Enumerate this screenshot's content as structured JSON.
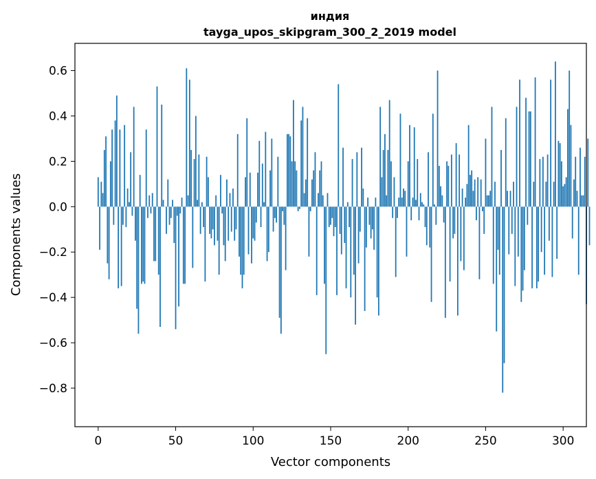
{
  "chart_data": {
    "type": "bar",
    "title": "индия",
    "subtitle": "tayga_upos_skipgram_300_2_2019 model",
    "xlabel": "Vector components",
    "ylabel": "Components values",
    "xlim": [
      -15,
      315
    ],
    "ylim": [
      -0.97,
      0.72
    ],
    "x_ticks": [
      0,
      50,
      100,
      150,
      200,
      250,
      300
    ],
    "y_ticks": [
      -0.8,
      -0.6,
      -0.4,
      -0.2,
      0.0,
      0.2,
      0.4,
      0.6
    ],
    "y_tick_labels": [
      "−0.8",
      "−0.6",
      "−0.4",
      "−0.2",
      "0.0",
      "0.2",
      "0.4",
      "0.6"
    ],
    "bar_color": "#1f77b4",
    "values": [
      0.13,
      -0.19,
      0.11,
      0.06,
      0.25,
      0.31,
      -0.25,
      -0.32,
      0.2,
      0.34,
      -0.08,
      0.38,
      0.49,
      -0.36,
      0.34,
      -0.35,
      -0.08,
      0.36,
      -0.09,
      0.08,
      0.02,
      0.24,
      -0.04,
      0.44,
      -0.15,
      -0.45,
      -0.56,
      0.14,
      -0.34,
      -0.33,
      -0.34,
      0.34,
      -0.05,
      0.05,
      -0.03,
      0.06,
      -0.24,
      -0.24,
      0.53,
      -0.3,
      -0.53,
      0.45,
      0.03,
      0.0,
      -0.12,
      0.12,
      -0.08,
      -0.05,
      0.03,
      -0.16,
      -0.54,
      -0.04,
      -0.44,
      -0.03,
      0.04,
      -0.34,
      -0.34,
      0.61,
      0.05,
      0.56,
      0.25,
      -0.27,
      0.21,
      0.4,
      0.03,
      0.23,
      -0.12,
      0.02,
      -0.09,
      -0.33,
      0.22,
      0.13,
      -0.12,
      -0.14,
      -0.1,
      -0.17,
      0.05,
      -0.15,
      -0.3,
      0.14,
      -0.03,
      -0.17,
      -0.24,
      0.12,
      -0.15,
      0.06,
      -0.11,
      0.08,
      -0.15,
      -0.1,
      0.32,
      -0.22,
      -0.3,
      -0.36,
      -0.3,
      0.13,
      0.39,
      -0.21,
      0.15,
      -0.25,
      -0.14,
      -0.15,
      -0.07,
      0.15,
      0.29,
      -0.09,
      0.19,
      0.02,
      0.33,
      -0.24,
      -0.2,
      0.16,
      0.3,
      -0.11,
      -0.05,
      -0.07,
      0.22,
      -0.49,
      -0.56,
      -0.02,
      -0.08,
      -0.28,
      0.32,
      0.32,
      0.31,
      0.2,
      0.47,
      0.2,
      0.16,
      -0.02,
      -0.01,
      0.38,
      0.44,
      0.06,
      0.12,
      0.39,
      -0.22,
      -0.02,
      0.12,
      0.16,
      0.24,
      -0.39,
      0.06,
      0.16,
      0.2,
      0.05,
      -0.34,
      -0.65,
      0.06,
      -0.09,
      -0.08,
      -0.05,
      -0.13,
      -0.09,
      -0.39,
      0.54,
      -0.12,
      -0.21,
      0.26,
      -0.16,
      -0.36,
      0.02,
      -0.09,
      -0.4,
      0.21,
      -0.3,
      -0.52,
      0.24,
      -0.25,
      -0.11,
      0.26,
      0.08,
      -0.46,
      -0.18,
      0.04,
      -0.08,
      -0.14,
      -0.1,
      -0.19,
      0.04,
      -0.4,
      -0.48,
      0.44,
      0.13,
      0.25,
      0.32,
      0.05,
      0.25,
      0.47,
      0.2,
      -0.05,
      0.13,
      -0.31,
      -0.05,
      0.04,
      0.41,
      0.04,
      0.08,
      0.07,
      -0.22,
      0.2,
      0.36,
      -0.06,
      0.04,
      0.35,
      0.03,
      0.21,
      -0.06,
      0.06,
      0.02,
      0.01,
      -0.09,
      -0.17,
      0.24,
      -0.18,
      -0.42,
      0.41,
      0.01,
      -0.08,
      0.6,
      0.18,
      0.09,
      0.05,
      -0.07,
      -0.49,
      0.2,
      0.18,
      -0.33,
      0.23,
      -0.14,
      -0.12,
      0.28,
      -0.48,
      0.23,
      -0.24,
      0.08,
      -0.28,
      0.04,
      0.1,
      0.36,
      0.14,
      0.16,
      0.07,
      0.12,
      -0.06,
      0.13,
      -0.32,
      0.12,
      -0.02,
      -0.12,
      0.3,
      0.05,
      0.05,
      0.07,
      0.44,
      -0.34,
      0.11,
      -0.55,
      -0.19,
      -0.3,
      0.25,
      -0.82,
      -0.69,
      0.39,
      0.07,
      -0.21,
      0.07,
      -0.12,
      0.11,
      -0.35,
      0.44,
      -0.22,
      0.56,
      -0.42,
      -0.37,
      -0.28,
      0.48,
      -0.08,
      0.42,
      0.42,
      -0.36,
      0.11,
      0.57,
      -0.36,
      -0.33,
      0.21,
      -0.2,
      0.22,
      -0.3,
      0.11,
      0.23,
      -0.15,
      0.56,
      -0.31,
      0.11,
      0.64,
      -0.23,
      0.29,
      0.28,
      0.2,
      0.09,
      0.1,
      0.13,
      0.43,
      0.6,
      0.36,
      -0.14,
      0.12,
      0.22,
      0.07,
      -0.3,
      0.26,
      0.05,
      0.05,
      0.22,
      -0.43,
      0.3,
      -0.17
    ]
  }
}
